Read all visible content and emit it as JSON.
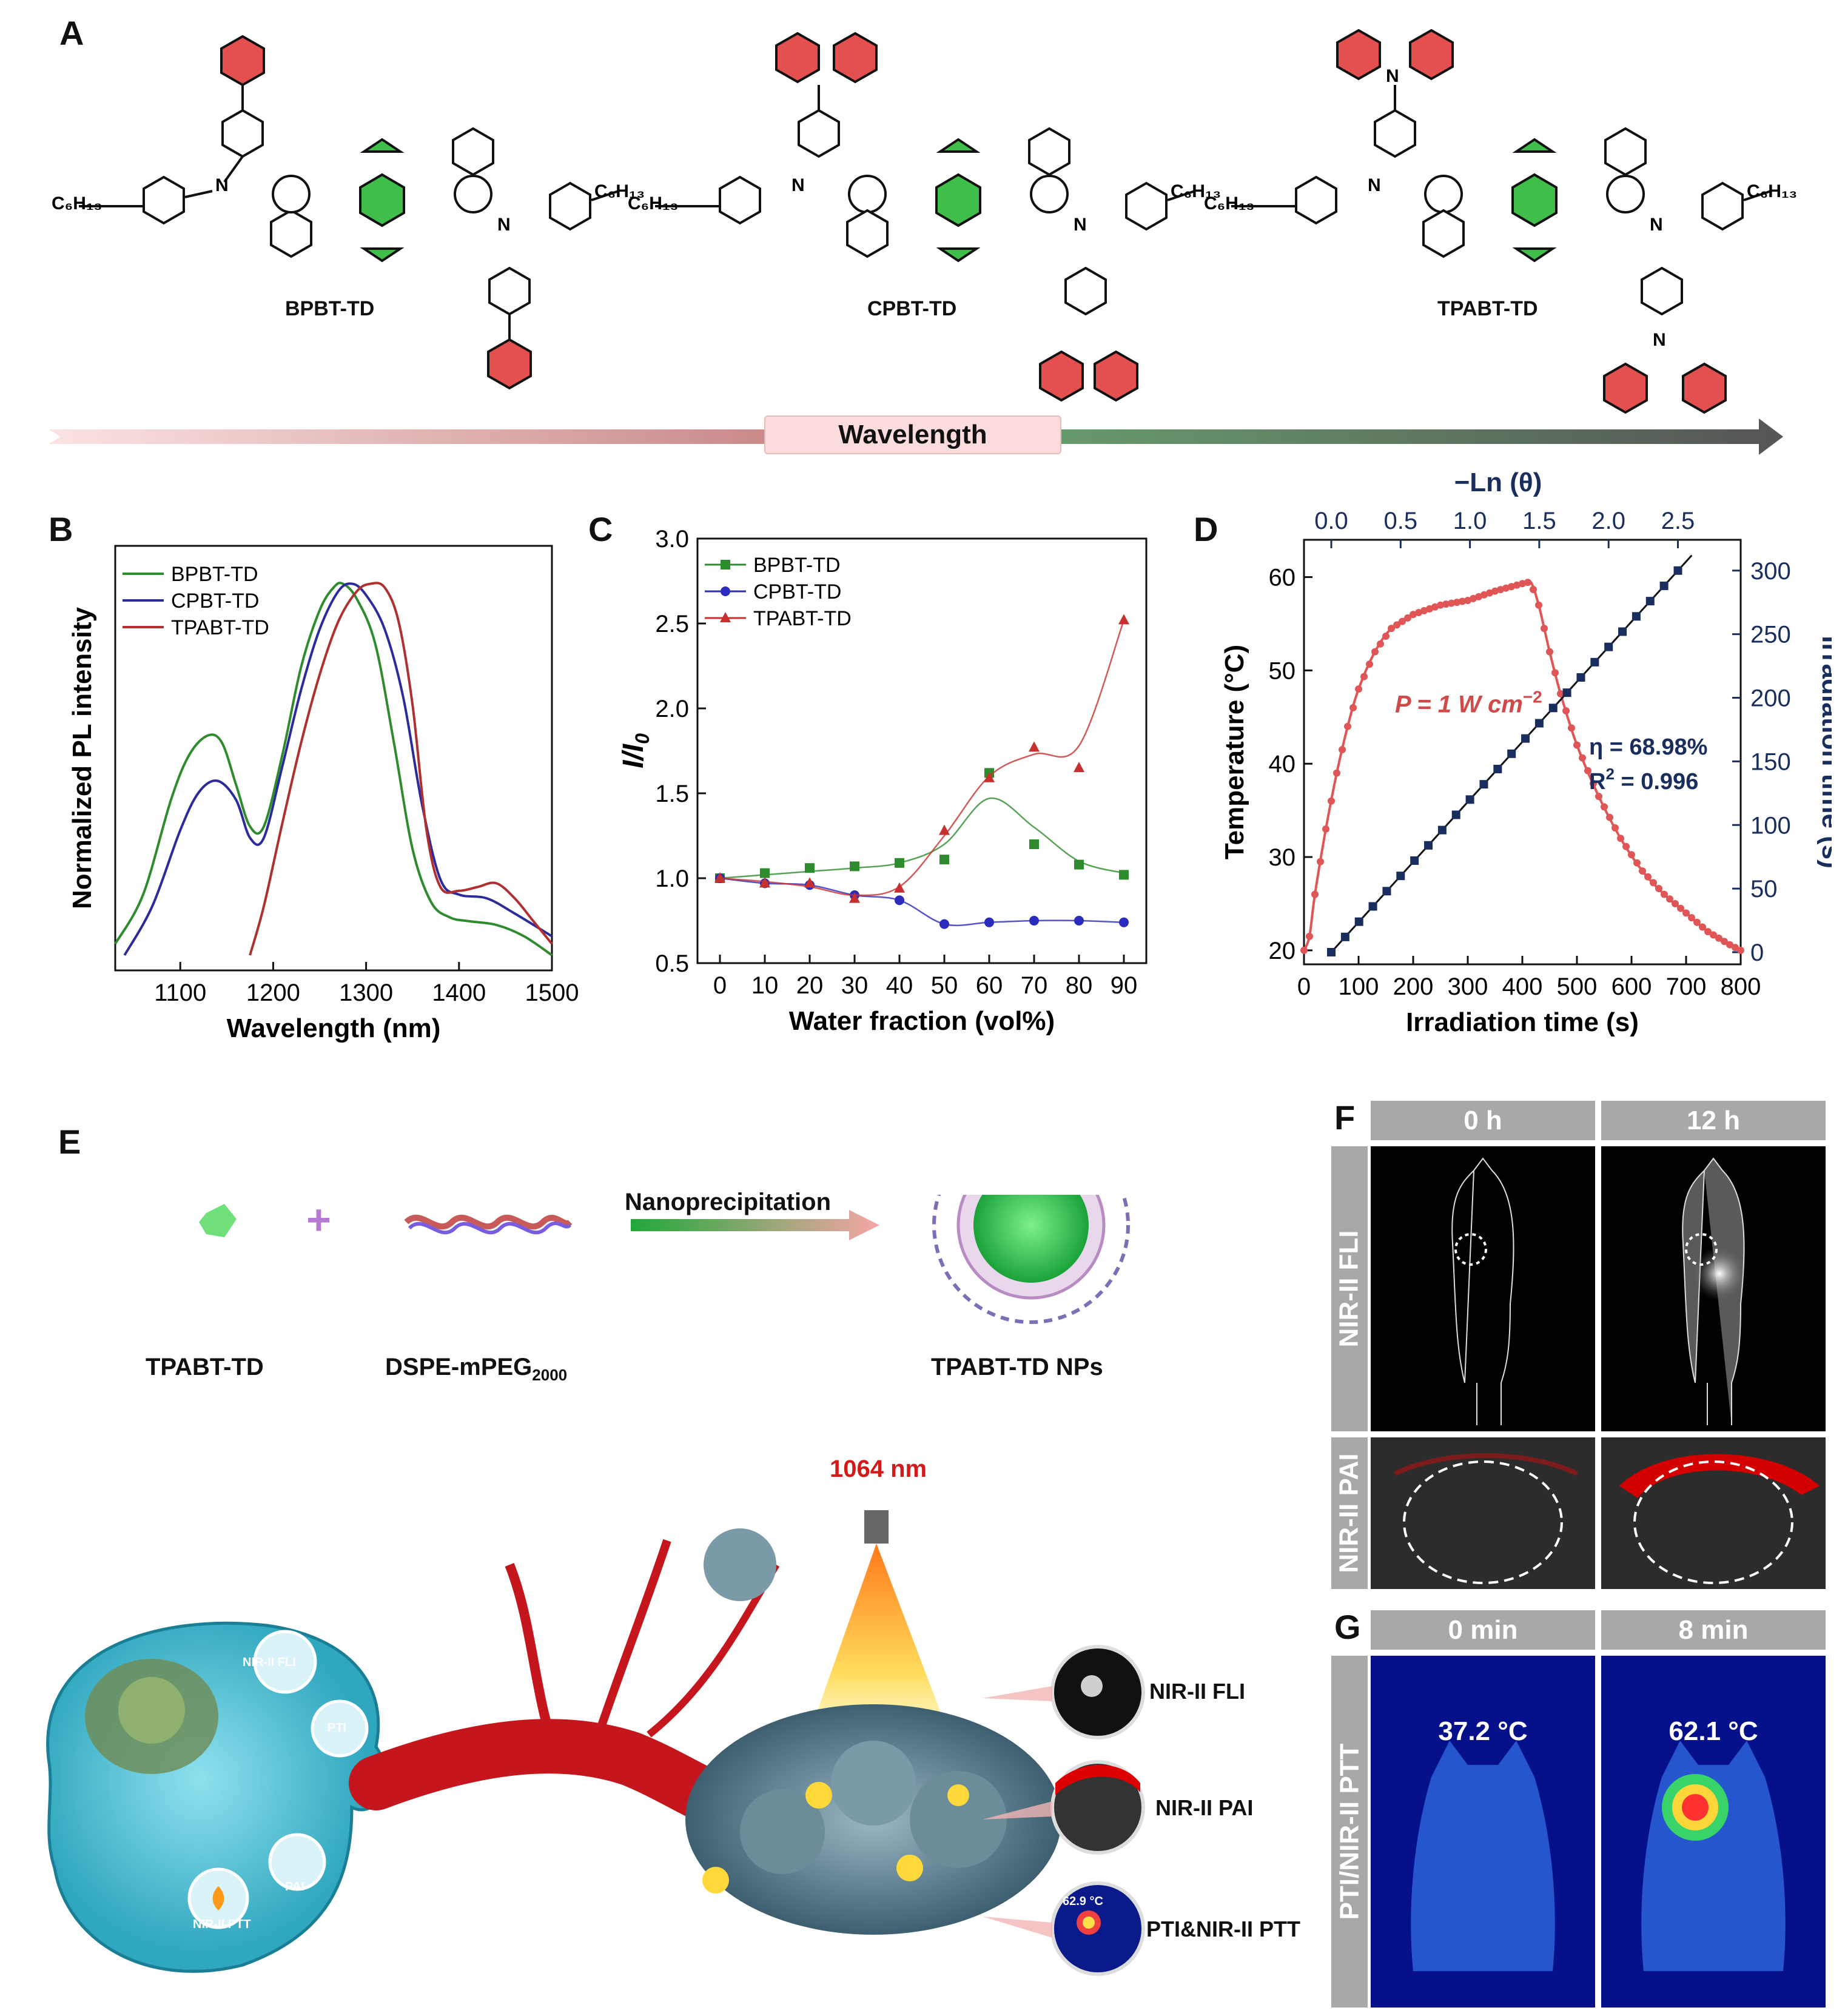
{
  "panel_labels": {
    "A": "A",
    "B": "B",
    "C": "C",
    "D": "D",
    "E": "E",
    "F": "F",
    "G": "G"
  },
  "panelA": {
    "molecules": [
      {
        "name": "BPBT-TD",
        "left_chain": "C6H13",
        "right_chain": "C6H13",
        "donor": "biphenyl"
      },
      {
        "name": "CPBT-TD",
        "left_chain": "C6H13",
        "right_chain": "C6H13",
        "donor": "carbazole"
      },
      {
        "name": "TPABT-TD",
        "left_chain": "C6H13",
        "right_chain": "C6H13",
        "donor": "triphenylamine"
      }
    ],
    "arrow_label": "Wavelength",
    "colors": {
      "acceptor": "#3fbf4a",
      "donor": "#e23b3b"
    }
  },
  "chart_data": [
    {
      "panel": "B",
      "type": "line",
      "xlabel": "Wavelength (nm)",
      "ylabel": "Normalized PL intensity",
      "xlim": [
        1030,
        1500
      ],
      "xticks": [
        1100,
        1200,
        1300,
        1400,
        1500
      ],
      "legend": "top-left",
      "series": [
        {
          "name": "BPBT-TD",
          "color": "#2e8b2e",
          "x": [
            1030,
            1060,
            1090,
            1110,
            1130,
            1145,
            1160,
            1175,
            1190,
            1210,
            1230,
            1250,
            1265,
            1275,
            1290,
            1310,
            1330,
            1350,
            1370,
            1390,
            1410,
            1440,
            1470,
            1500
          ],
          "y": [
            0.05,
            0.18,
            0.43,
            0.55,
            0.6,
            0.58,
            0.47,
            0.36,
            0.36,
            0.55,
            0.78,
            0.93,
            0.99,
            1.0,
            0.96,
            0.84,
            0.58,
            0.3,
            0.16,
            0.12,
            0.11,
            0.1,
            0.07,
            0.02
          ]
        },
        {
          "name": "CPBT-TD",
          "color": "#2b2b9e",
          "x": [
            1040,
            1070,
            1100,
            1120,
            1140,
            1160,
            1175,
            1190,
            1210,
            1230,
            1250,
            1270,
            1285,
            1300,
            1320,
            1340,
            1360,
            1380,
            1400,
            1430,
            1460,
            1500
          ],
          "y": [
            0.02,
            0.15,
            0.35,
            0.45,
            0.48,
            0.43,
            0.33,
            0.33,
            0.52,
            0.72,
            0.88,
            0.98,
            1.0,
            0.97,
            0.88,
            0.7,
            0.42,
            0.22,
            0.18,
            0.17,
            0.13,
            0.07
          ]
        },
        {
          "name": "TPABT-TD",
          "color": "#b03030",
          "x": [
            1175,
            1190,
            1210,
            1230,
            1250,
            1270,
            1290,
            1305,
            1320,
            1335,
            1350,
            1365,
            1380,
            1400,
            1420,
            1440,
            1460,
            1480,
            1500
          ],
          "y": [
            0.02,
            0.15,
            0.37,
            0.58,
            0.76,
            0.9,
            0.98,
            1.0,
            0.99,
            0.9,
            0.68,
            0.35,
            0.2,
            0.19,
            0.2,
            0.21,
            0.17,
            0.11,
            0.05
          ]
        }
      ]
    },
    {
      "panel": "C",
      "type": "scatter",
      "xlabel": "Water fraction (vol%)",
      "ylabel": "I/I0",
      "xlim": [
        -5,
        95
      ],
      "ylim": [
        0.5,
        3.0
      ],
      "xticks": [
        0,
        10,
        20,
        30,
        40,
        50,
        60,
        70,
        80,
        90
      ],
      "yticks": [
        0.5,
        1.0,
        1.5,
        2.0,
        2.5,
        3.0
      ],
      "legend": "top-left",
      "series": [
        {
          "name": "BPBT-TD",
          "color": "#2e8b2e",
          "marker": "square",
          "x": [
            0,
            10,
            20,
            30,
            40,
            50,
            60,
            70,
            80,
            90
          ],
          "y": [
            1.0,
            1.03,
            1.06,
            1.07,
            1.09,
            1.11,
            1.62,
            1.2,
            1.08,
            1.02
          ]
        },
        {
          "name": "CPBT-TD",
          "color": "#2b2bbd",
          "marker": "circle",
          "x": [
            0,
            10,
            20,
            30,
            40,
            50,
            60,
            70,
            80,
            90
          ],
          "y": [
            1.0,
            0.97,
            0.96,
            0.9,
            0.87,
            0.73,
            0.74,
            0.75,
            0.75,
            0.74
          ]
        },
        {
          "name": "TPABT-TD",
          "color": "#c83030",
          "marker": "triangle",
          "x": [
            0,
            10,
            20,
            30,
            40,
            50,
            60,
            70,
            80,
            90
          ],
          "y": [
            1.0,
            0.97,
            0.97,
            0.88,
            0.94,
            1.28,
            1.59,
            1.77,
            1.65,
            2.52
          ]
        }
      ]
    },
    {
      "panel": "D",
      "type": "scatter",
      "xlabel": "Irradiation time (s)",
      "ylabel": "Temperature (°C)",
      "top_xlabel": "−Ln (θ)",
      "right_ylabel": "Irradiation time (s)",
      "xlim": [
        0,
        800
      ],
      "ylim": [
        18.5,
        64
      ],
      "xticks": [
        0,
        100,
        200,
        300,
        400,
        500,
        600,
        700,
        800
      ],
      "yticks": [
        20,
        30,
        40,
        50,
        60
      ],
      "top_xticks": [
        0.0,
        0.5,
        1.0,
        1.5,
        2.0,
        2.5
      ],
      "right_yticks": [
        0,
        50,
        100,
        150,
        200,
        250,
        300
      ],
      "heating_curve": {
        "color": "#e05555",
        "t": [
          0,
          10,
          20,
          40,
          60,
          80,
          100,
          130,
          160,
          200,
          250,
          300,
          350,
          400,
          415,
          430,
          450,
          470,
          500,
          540,
          580,
          620,
          660,
          700,
          740,
          780,
          800
        ],
        "T": [
          20,
          21.5,
          26,
          33,
          39,
          44,
          48,
          52,
          54.5,
          56,
          57,
          57.5,
          58.5,
          59.3,
          59.5,
          57,
          52,
          47.5,
          42,
          36.5,
          32,
          28.5,
          26,
          24,
          22,
          20.6,
          20
        ]
      },
      "linear_fit": {
        "color": "#1a2e5e",
        "points_lnTheta": [
          0.0,
          0.1,
          0.2,
          0.3,
          0.4,
          0.5,
          0.6,
          0.7,
          0.8,
          0.9,
          1.0,
          1.1,
          1.2,
          1.3,
          1.4,
          1.5,
          1.6,
          1.7,
          1.8,
          1.9,
          2.0,
          2.1,
          2.2,
          2.3,
          2.4,
          2.5
        ],
        "points_time": [
          0,
          12,
          24,
          36,
          48,
          60,
          72,
          84,
          96,
          108,
          120,
          132,
          144,
          156,
          168,
          180,
          192,
          204,
          216,
          228,
          240,
          252,
          264,
          276,
          288,
          300
        ]
      },
      "annotations": [
        "P = 1 W cm",
        "−2",
        "η = 68.98%",
        "R",
        "2",
        " = 0.996"
      ]
    }
  ],
  "panelE": {
    "labels": {
      "molecule": "TPABT-TD",
      "polymer": "DSPE-mPEG",
      "polymer_sub": "2000",
      "process": "Nanoprecipitation",
      "product": "TPABT-TD NPs"
    },
    "laser": "1064 nm",
    "cell_badges": [
      "NIR-II FLI",
      "PTI",
      "PAI",
      "NIR-II PTT"
    ],
    "outcomes": [
      "NIR-II FLI",
      "NIR-II PAI",
      "PTI&NIR-II PTT"
    ],
    "inset_temp": "62.9 °C"
  },
  "panelF": {
    "columns": [
      "0 h",
      "12 h"
    ],
    "rows": [
      "NIR-II FLI",
      "NIR-II PAI"
    ]
  },
  "panelG": {
    "columns": [
      "0 min",
      "8 min"
    ],
    "row": "PTI/NIR-II PTT",
    "temps": [
      "37.2 °C",
      "62.1 °C"
    ]
  }
}
